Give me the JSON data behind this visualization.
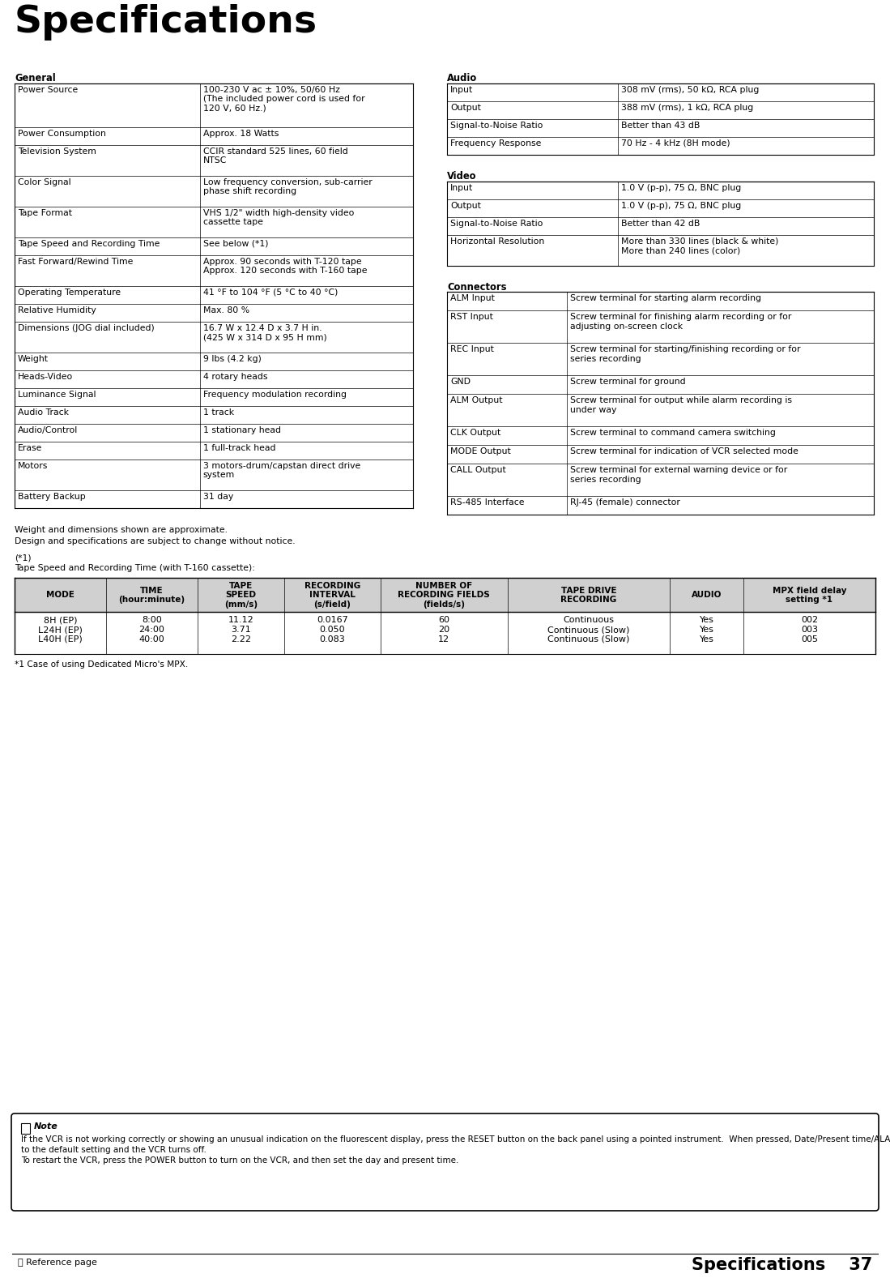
{
  "title": "Specifications",
  "page_number": "37",
  "footer_left": "Reference page",
  "footer_right": "Specifications",
  "bg_color": "#ffffff",
  "general_section": {
    "header": "General",
    "rows": [
      [
        "Power Source",
        "100-230 V ac ± 10%, 50/60 Hz\n(The included power cord is used for\n120 V, 60 Hz.)"
      ],
      [
        "Power Consumption",
        "Approx. 18 Watts"
      ],
      [
        "Television System",
        "CCIR standard 525 lines, 60 field\nNTSC"
      ],
      [
        "Color Signal",
        "Low frequency conversion, sub-carrier\nphase shift recording"
      ],
      [
        "Tape Format",
        "VHS 1/2\" width high-density video\ncassette tape"
      ],
      [
        "Tape Speed and Recording Time",
        "See below (*1)"
      ],
      [
        "Fast Forward/Rewind Time",
        "Approx. 90 seconds with T-120 tape\nApprox. 120 seconds with T-160 tape"
      ],
      [
        "Operating Temperature",
        "41 °F to 104 °F (5 °C to 40 °C)"
      ],
      [
        "Relative Humidity",
        "Max. 80 %"
      ],
      [
        "Dimensions (JOG dial included)",
        "16.7 W x 12.4 D x 3.7 H in.\n(425 W x 314 D x 95 H mm)"
      ],
      [
        "Weight",
        "9 lbs (4.2 kg)"
      ],
      [
        "Heads-Video",
        "4 rotary heads"
      ],
      [
        "Luminance Signal",
        "Frequency modulation recording"
      ],
      [
        "Audio Track",
        "1 track"
      ],
      [
        "Audio/Control",
        "1 stationary head"
      ],
      [
        "Erase",
        "1 full-track head"
      ],
      [
        "Motors",
        "3 motors-drum/capstan direct drive\nsystem"
      ],
      [
        "Battery Backup",
        "31 day"
      ]
    ]
  },
  "audio_section": {
    "header": "Audio",
    "rows": [
      [
        "Input",
        "308 mV (rms), 50 kΩ, RCA plug"
      ],
      [
        "Output",
        "388 mV (rms), 1 kΩ, RCA plug"
      ],
      [
        "Signal-to-Noise Ratio",
        "Better than 43 dB"
      ],
      [
        "Frequency Response",
        "70 Hz - 4 kHz (8H mode)"
      ]
    ]
  },
  "video_section": {
    "header": "Video",
    "rows": [
      [
        "Input",
        "1.0 V (p-p), 75 Ω, BNC plug"
      ],
      [
        "Output",
        "1.0 V (p-p), 75 Ω, BNC plug"
      ],
      [
        "Signal-to-Noise Ratio",
        "Better than 42 dB"
      ],
      [
        "Horizontal Resolution",
        "More than 330 lines (black & white)\nMore than 240 lines (color)"
      ]
    ]
  },
  "connectors_section": {
    "header": "Connectors",
    "rows": [
      [
        "ALM Input",
        "Screw terminal for starting alarm recording"
      ],
      [
        "RST Input",
        "Screw terminal for finishing alarm recording or for\nadjusting on-screen clock"
      ],
      [
        "REC Input",
        "Screw terminal for starting/finishing recording or for\nseries recording"
      ],
      [
        "GND",
        "Screw terminal for ground"
      ],
      [
        "ALM Output",
        "Screw terminal for output while alarm recording is\nunder way"
      ],
      [
        "CLK Output",
        "Screw terminal to command camera switching"
      ],
      [
        "MODE Output",
        "Screw terminal for indication of VCR selected mode"
      ],
      [
        "CALL Output",
        "Screw terminal for external warning device or for\nseries recording"
      ],
      [
        "RS-485 Interface",
        "RJ-45 (female) connector"
      ]
    ]
  },
  "note_text_before_reset": "If the VCR is not working correctly or showing an unusual indication on the fluorescent display, press the ",
  "note_text_after_reset": " button on the back panel using a pointed instrument.  When pressed, Date/Present time/ALARM LIST/POWER LOSS LIST/Counter display/Recording and Playback mode will be set\nto the default setting and the VCR turns off.\nTo restart the VCR, press the POWER button to turn on the VCR, and then set the day and present time.",
  "weight_dimensions_note_line1": "Weight and dimensions shown are approximate.",
  "weight_dimensions_note_line2": "Design and specifications are subject to change without notice.",
  "table_caption_line1": "(*1)",
  "table_caption_line2": "Tape Speed and Recording Time (with T-160 cassette):",
  "table_headers": [
    "MODE",
    "TIME\n(hour:minute)",
    "TAPE\nSPEED\n(mm/s)",
    "RECORDING\nINTERVAL\n(s/field)",
    "NUMBER OF\nRECORDING FIELDS\n(fields/s)",
    "TAPE DRIVE\nRECORDING",
    "AUDIO",
    "MPX field delay\nsetting *1"
  ],
  "table_col_modes": [
    "8H (EP)",
    "L24H (EP)",
    "L40H (EP)"
  ],
  "table_col_times": [
    "8:00",
    "24:00",
    "40:00"
  ],
  "table_col_speeds": [
    "11.12",
    "3.71",
    "2.22"
  ],
  "table_col_intervals": [
    "0.0167",
    "0.050",
    "0.083"
  ],
  "table_col_fields": [
    "60",
    "20",
    "12"
  ],
  "table_col_tape_drive": [
    "Continuous",
    "Continuous (Slow)",
    "Continuous (Slow)"
  ],
  "table_col_audio": [
    "Yes",
    "Yes",
    "Yes"
  ],
  "table_col_mpx": [
    "002",
    "003",
    "005"
  ],
  "table_footnote": "*1 Case of using Dedicated Micro's MPX.",
  "note_label": "Note"
}
